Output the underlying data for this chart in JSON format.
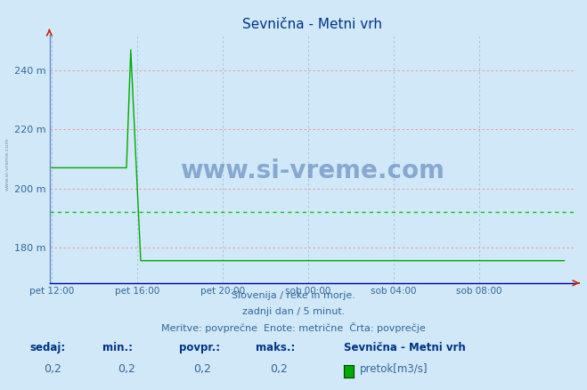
{
  "title_display": "Sevnična - Metni vrh",
  "bg_color": "#d0e8f8",
  "plot_bg_color": "#d0e8f8",
  "line_color": "#00aa00",
  "avg_line_color": "#00cc00",
  "left_spine_color": "#6688cc",
  "bottom_spine_color": "#0000aa",
  "grid_h_color": "#ff8888",
  "grid_v_color": "#aabbdd",
  "xlabel_color": "#336699",
  "ylabel_color": "#336699",
  "title_color": "#003388",
  "text_color": "#336699",
  "footer_color": "#336699",
  "ymin": 168,
  "ymax": 252,
  "yticks": [
    180,
    200,
    220,
    240
  ],
  "xtick_labels": [
    "pet 12:00",
    "pet 16:00",
    "pet 20:00",
    "sob 00:00",
    "sob 04:00",
    "sob 08:00"
  ],
  "xtick_positions": [
    0,
    240,
    480,
    720,
    960,
    1200
  ],
  "total_points": 1440,
  "flat_before_value": 207,
  "flat_before_end": 210,
  "spike_rise_start": 210,
  "spike_peak_idx": 222,
  "spike_peak_value": 247,
  "spike_fall_end": 250,
  "flat_after_value": 175.5,
  "avg_value": 192,
  "watermark": "www.si-vreme.com",
  "footer_line1": "Slovenija / reke in morje.",
  "footer_line2": "zadnji dan / 5 minut.",
  "footer_line3": "Meritve: povprečne  Enote: metrične  Črta: povprečje",
  "legend_title": "Sevnična - Metni vrh",
  "legend_label": "pretok[m3/s]",
  "stat_labels": [
    "sedaj:",
    "min.:",
    "povpr.:",
    "maks.:"
  ],
  "stat_values": [
    "0,2",
    "0,2",
    "0,2",
    "0,2"
  ],
  "left_label": "www.si-vreme.com"
}
